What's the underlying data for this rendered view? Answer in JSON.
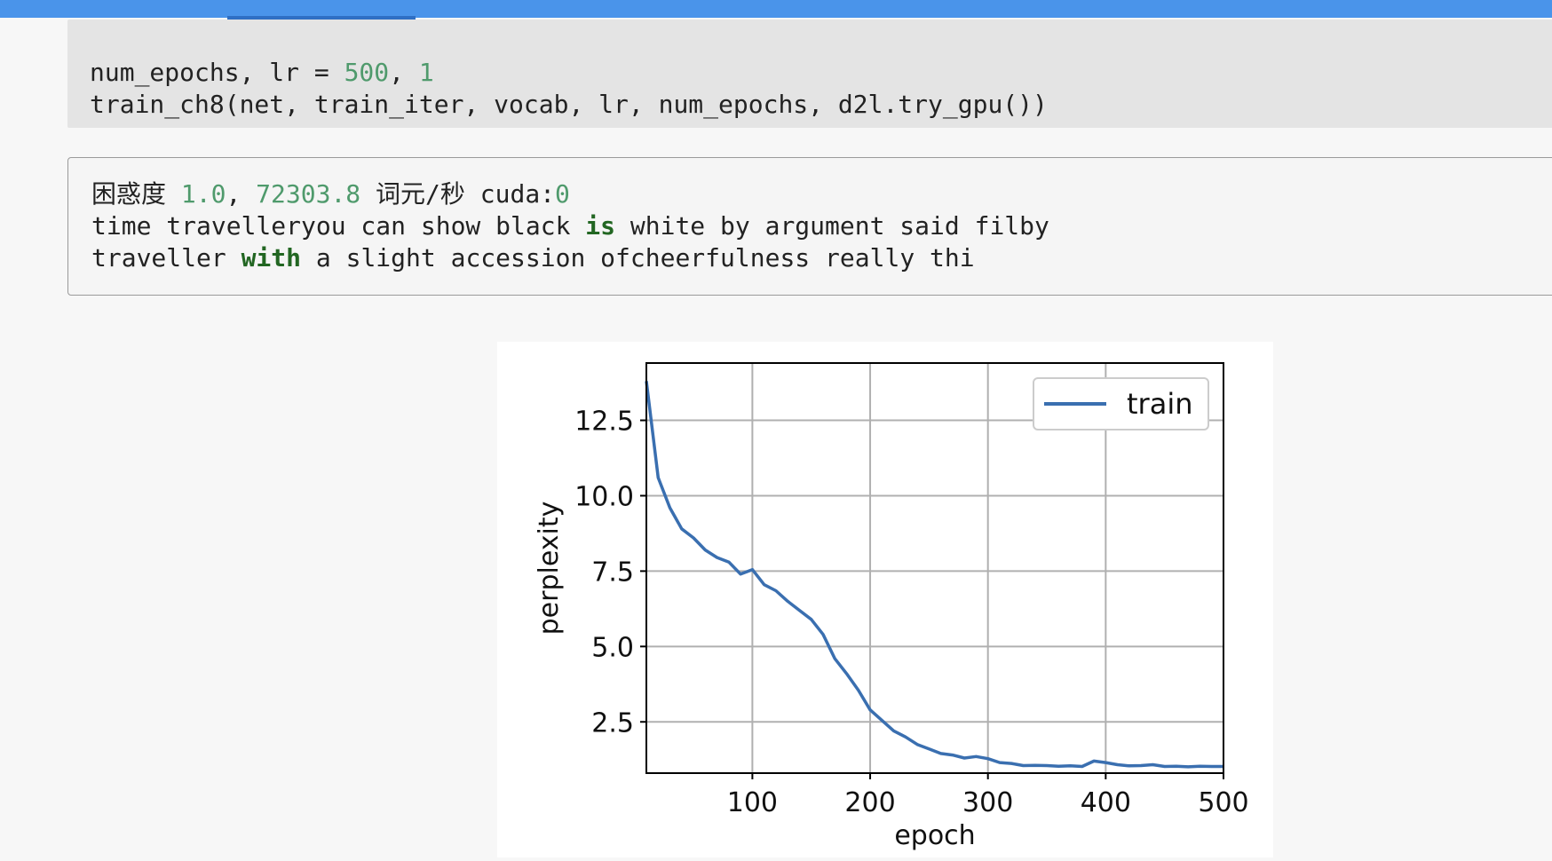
{
  "code": {
    "line1": {
      "prefix": "num_epochs, lr = ",
      "epochs_value": "500",
      "sep": ", ",
      "lr_value": "1"
    },
    "line2": "train_ch8(net, train_iter, vocab, lr, num_epochs, d2l.try_gpu())"
  },
  "output": {
    "line1": {
      "label": "困惑度 ",
      "perplexity": "1.0",
      "sep": ", ",
      "speed": "72303.8",
      "unit": " 词元/秒 cuda:",
      "device_index": "0"
    },
    "line2": {
      "a": "time travelleryou can show black ",
      "kw": "is",
      "b": " white by argument said filby"
    },
    "line3": {
      "a": "traveller ",
      "kw": "with",
      "b": " a slight accession ofcheerfulness really thi"
    }
  },
  "chart_data": {
    "type": "line",
    "xlabel": "epoch",
    "ylabel": "perplexity",
    "xlim": [
      10,
      500
    ],
    "ylim": [
      0.8,
      14.4
    ],
    "xticks": [
      100,
      200,
      300,
      400,
      500
    ],
    "yticks": [
      2.5,
      5.0,
      7.5,
      10.0,
      12.5
    ],
    "ytick_labels": [
      "2.5",
      "5.0",
      "7.5",
      "10.0",
      "12.5"
    ],
    "grid": true,
    "legend_position": "top-right",
    "series": [
      {
        "name": "train",
        "color": "#3a6fb0",
        "x": [
          10,
          20,
          30,
          40,
          50,
          60,
          70,
          80,
          90,
          100,
          110,
          120,
          130,
          140,
          150,
          160,
          170,
          180,
          190,
          200,
          210,
          220,
          230,
          240,
          250,
          260,
          270,
          280,
          290,
          300,
          310,
          320,
          330,
          340,
          350,
          360,
          370,
          380,
          390,
          400,
          410,
          420,
          430,
          440,
          450,
          460,
          470,
          480,
          490,
          500
        ],
        "y": [
          13.8,
          10.6,
          9.6,
          8.9,
          8.6,
          8.2,
          7.95,
          7.8,
          7.4,
          7.55,
          7.05,
          6.85,
          6.5,
          6.2,
          5.9,
          5.4,
          4.6,
          4.1,
          3.55,
          2.9,
          2.55,
          2.2,
          2.0,
          1.75,
          1.6,
          1.45,
          1.4,
          1.3,
          1.35,
          1.28,
          1.15,
          1.12,
          1.05,
          1.06,
          1.05,
          1.03,
          1.04,
          1.02,
          1.2,
          1.15,
          1.08,
          1.04,
          1.05,
          1.08,
          1.02,
          1.03,
          1.01,
          1.03,
          1.02,
          1.02
        ]
      }
    ]
  }
}
